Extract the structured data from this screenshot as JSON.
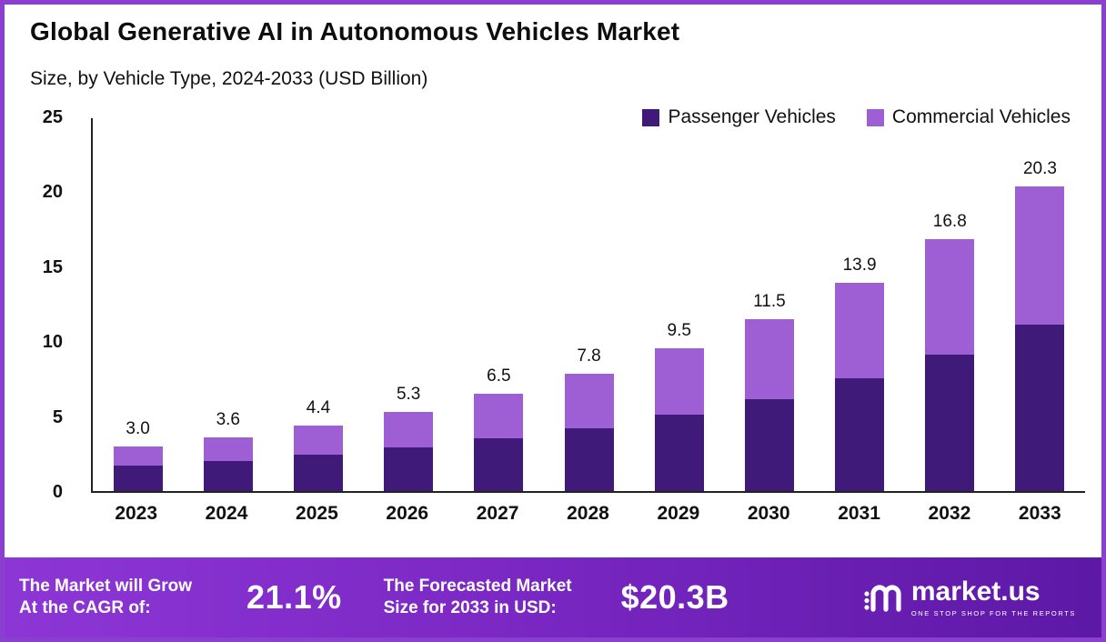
{
  "header": {
    "title": "Global Generative AI in Autonomous Vehicles Market",
    "subtitle": "Size, by Vehicle Type, 2024-2033 (USD Billion)"
  },
  "legend": [
    {
      "label": "Passenger Vehicles",
      "color": "#3f1a78"
    },
    {
      "label": "Commercial Vehicles",
      "color": "#9d5fd3"
    }
  ],
  "chart_data": {
    "type": "bar",
    "stacked": true,
    "title": "Global Generative AI in Autonomous Vehicles Market Size, by Vehicle Type, 2024-2033 (USD Billion)",
    "categories": [
      "2023",
      "2024",
      "2025",
      "2026",
      "2027",
      "2028",
      "2029",
      "2030",
      "2031",
      "2032",
      "2033"
    ],
    "series": [
      {
        "name": "Passenger Vehicles",
        "color": "#3f1a78",
        "values": [
          1.7,
          2.0,
          2.4,
          2.9,
          3.5,
          4.2,
          5.1,
          6.1,
          7.5,
          9.1,
          11.1
        ]
      },
      {
        "name": "Commercial Vehicles",
        "color": "#9d5fd3",
        "values": [
          1.3,
          1.6,
          2.0,
          2.4,
          3.0,
          3.6,
          4.4,
          5.4,
          6.4,
          7.7,
          9.2
        ]
      }
    ],
    "totals": [
      3.0,
      3.6,
      4.4,
      5.3,
      6.5,
      7.8,
      9.5,
      11.5,
      13.9,
      16.8,
      20.3
    ],
    "total_labels": [
      "3.0",
      "3.6",
      "4.4",
      "5.3",
      "6.5",
      "7.8",
      "9.5",
      "11.5",
      "13.9",
      "16.8",
      "20.3"
    ],
    "xlabel": "",
    "ylabel": "",
    "ylim": [
      0,
      25
    ],
    "yticks": [
      0,
      5,
      10,
      15,
      20,
      25
    ],
    "grid": false,
    "legend_position": "top-right"
  },
  "banner": {
    "cagr_label_line1": "The Market will Grow",
    "cagr_label_line2": "At the CAGR of:",
    "cagr_value": "21.1%",
    "forecast_label_line1": "The Forecasted Market",
    "forecast_label_line2": "Size for 2033 in USD:",
    "forecast_value": "$20.3B",
    "brand": "market.us",
    "brand_tagline": "ONE STOP SHOP FOR THE REPORTS"
  }
}
